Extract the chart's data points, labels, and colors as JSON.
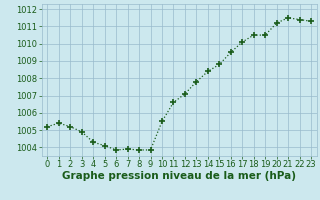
{
  "x": [
    0,
    1,
    2,
    3,
    4,
    5,
    6,
    7,
    8,
    9,
    10,
    11,
    12,
    13,
    14,
    15,
    16,
    17,
    18,
    19,
    20,
    21,
    22,
    23
  ],
  "y": [
    1005.2,
    1005.4,
    1005.2,
    1004.9,
    1004.3,
    1004.1,
    1003.85,
    1003.9,
    1003.85,
    1003.85,
    1005.5,
    1006.6,
    1007.1,
    1007.8,
    1008.4,
    1008.8,
    1009.5,
    1010.1,
    1010.5,
    1010.5,
    1011.2,
    1011.5,
    1011.4,
    1011.3
  ],
  "ylim": [
    1003.5,
    1012.3
  ],
  "yticks": [
    1004,
    1005,
    1006,
    1007,
    1008,
    1009,
    1010,
    1011,
    1012
  ],
  "xticks": [
    0,
    1,
    2,
    3,
    4,
    5,
    6,
    7,
    8,
    9,
    10,
    11,
    12,
    13,
    14,
    15,
    16,
    17,
    18,
    19,
    20,
    21,
    22,
    23
  ],
  "line_color": "#1a5c1a",
  "marker": "+",
  "marker_size": 4,
  "marker_lw": 1.2,
  "line_width": 0.9,
  "bg_color": "#cce8ee",
  "grid_color": "#99bbcc",
  "xlabel": "Graphe pression niveau de la mer (hPa)",
  "xlabel_color": "#1a5c1a",
  "tick_color": "#1a5c1a",
  "label_fontsize": 6.0,
  "xlabel_fontsize": 7.5
}
